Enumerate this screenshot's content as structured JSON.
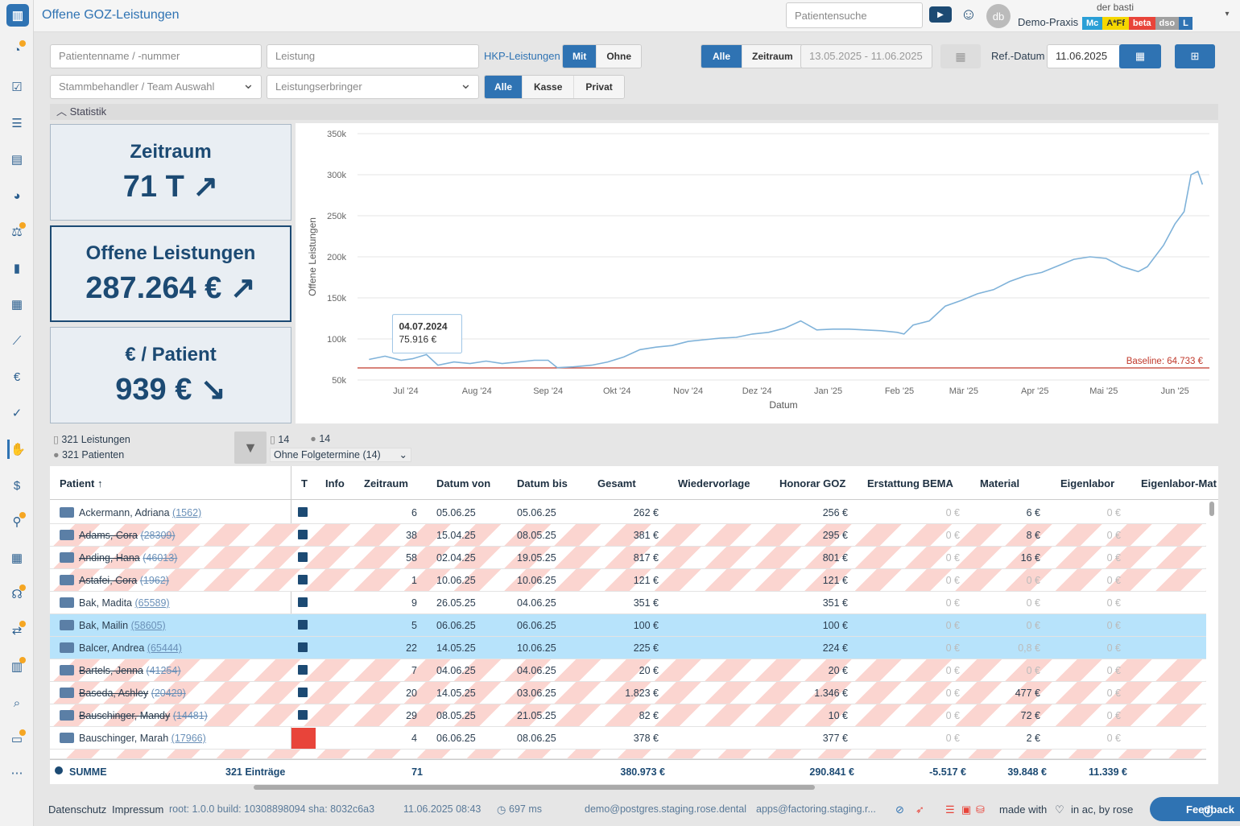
{
  "app": {
    "title": "Offene GOZ-Leistungen",
    "logo_icon": "bar-chart-icon"
  },
  "header": {
    "search_placeholder": "Patientensuche",
    "user": "der basti",
    "practice": "Demo-Praxis",
    "badges": [
      {
        "label": "Mc",
        "color": "#2a9fd6"
      },
      {
        "label": "A*Ff",
        "color": "#f5d700",
        "text_color": "#333"
      },
      {
        "label": "beta",
        "color": "#e8443a"
      },
      {
        "label": "dso",
        "color": "#a0a0a0"
      },
      {
        "label": "L",
        "color": "#2f73b3"
      }
    ],
    "avatar_initials": "db"
  },
  "filters": {
    "patient_placeholder": "Patientenname / -nummer",
    "leistung_placeholder": "Leistung",
    "hkp_label": "HKP-Leistungen",
    "hkp_options": [
      "Mit",
      "Ohne"
    ],
    "hkp_selected": "Mit",
    "period_options": [
      "Alle",
      "Zeitraum"
    ],
    "period_selected": "Alle",
    "date_range": "13.05.2025 - 11.06.2025",
    "ref_label": "Ref.-Datum",
    "ref_date": "11.06.2025",
    "behandler_placeholder": "Stammbehandler / Team Auswahl",
    "erbringer_placeholder": "Leistungserbringer",
    "kasse_options": [
      "Alle",
      "Kasse",
      "Privat"
    ],
    "kasse_selected": "Alle"
  },
  "statistik": {
    "label": "Statistik"
  },
  "kpis": [
    {
      "label": "Zeitraum",
      "value": "71 T",
      "trend": "↗"
    },
    {
      "label": "Offene Leistungen",
      "value": "287.264 €",
      "trend": "↗"
    },
    {
      "label": "€ / Patient",
      "value": "939 €",
      "trend": "↘"
    }
  ],
  "chart_data": {
    "type": "line",
    "xlabel": "Datum",
    "ylabel": "Offene Leistungen",
    "ylim": [
      50000,
      350000
    ],
    "yticks": [
      "50k",
      "100k",
      "150k",
      "200k",
      "250k",
      "300k",
      "350k"
    ],
    "xticks": [
      "Jul '24",
      "Aug '24",
      "Sep '24",
      "Okt '24",
      "Nov '24",
      "Dez '24",
      "Jan '25",
      "Feb '25",
      "Mär '25",
      "Apr '25",
      "Mai '25",
      "Jun '25"
    ],
    "baseline": {
      "label": "Baseline: 64.733 €",
      "value": 64733,
      "color": "#c0392b"
    },
    "tooltip": {
      "date": "04.07.2024",
      "value": "75.916 €"
    },
    "series": [
      {
        "color": "#7fb2d9",
        "points": [
          [
            "2024-06-15",
            75000
          ],
          [
            "2024-06-22",
            79000
          ],
          [
            "2024-06-29",
            74000
          ],
          [
            "2024-07-04",
            75916
          ],
          [
            "2024-07-10",
            81000
          ],
          [
            "2024-07-15",
            68000
          ],
          [
            "2024-07-22",
            72000
          ],
          [
            "2024-07-29",
            70000
          ],
          [
            "2024-08-05",
            73000
          ],
          [
            "2024-08-12",
            70000
          ],
          [
            "2024-08-19",
            72000
          ],
          [
            "2024-08-26",
            74000
          ],
          [
            "2024-09-01",
            74000
          ],
          [
            "2024-09-05",
            65000
          ],
          [
            "2024-09-12",
            66000
          ],
          [
            "2024-09-20",
            68000
          ],
          [
            "2024-09-27",
            72000
          ],
          [
            "2024-10-04",
            78000
          ],
          [
            "2024-10-11",
            87000
          ],
          [
            "2024-10-18",
            90000
          ],
          [
            "2024-10-25",
            92000
          ],
          [
            "2024-11-01",
            97000
          ],
          [
            "2024-11-08",
            99000
          ],
          [
            "2024-11-15",
            101000
          ],
          [
            "2024-11-22",
            102000
          ],
          [
            "2024-11-29",
            106000
          ],
          [
            "2024-12-06",
            108000
          ],
          [
            "2024-12-13",
            113000
          ],
          [
            "2024-12-20",
            122000
          ],
          [
            "2024-12-27",
            111000
          ],
          [
            "2025-01-03",
            112000
          ],
          [
            "2025-01-10",
            112000
          ],
          [
            "2025-01-17",
            111000
          ],
          [
            "2025-01-24",
            110000
          ],
          [
            "2025-01-31",
            108000
          ],
          [
            "2025-02-03",
            106000
          ],
          [
            "2025-02-07",
            117000
          ],
          [
            "2025-02-14",
            122000
          ],
          [
            "2025-02-21",
            140000
          ],
          [
            "2025-02-28",
            147000
          ],
          [
            "2025-03-07",
            155000
          ],
          [
            "2025-03-14",
            160000
          ],
          [
            "2025-03-21",
            170000
          ],
          [
            "2025-03-28",
            177000
          ],
          [
            "2025-04-04",
            181000
          ],
          [
            "2025-04-11",
            189000
          ],
          [
            "2025-04-18",
            197000
          ],
          [
            "2025-04-25",
            200000
          ],
          [
            "2025-05-02",
            198000
          ],
          [
            "2025-05-09",
            188000
          ],
          [
            "2025-05-16",
            182000
          ],
          [
            "2025-05-20",
            188000
          ],
          [
            "2025-05-27",
            214000
          ],
          [
            "2025-06-01",
            240000
          ],
          [
            "2025-06-05",
            255000
          ],
          [
            "2025-06-08",
            300000
          ],
          [
            "2025-06-11",
            304000
          ],
          [
            "2025-06-13",
            288000
          ]
        ]
      }
    ]
  },
  "stats": {
    "leistungen": "321 Leistungen",
    "patienten": "321 Patienten",
    "filter_docs": "14",
    "filter_patients": "14",
    "followup": "Ohne Folgetermine (14)"
  },
  "table": {
    "columns": [
      "Patient ↑",
      "T",
      "Info",
      "Zeitraum",
      "Datum von",
      "Datum bis",
      "Gesamt",
      "Wiedervorlage",
      "Honorar GOZ",
      "Erstattung BEMA",
      "Material",
      "Eigenlabor",
      "Eigenlabor-Mat"
    ],
    "rows": [
      {
        "name": "Ackermann, Adriana",
        "num": "(1562)",
        "zeit": "6",
        "von": "05.06.25",
        "bis": "05.06.25",
        "gesamt": "262 €",
        "honorar": "256 €",
        "bema": "0 €",
        "material": "6 €",
        "eigen": "0 €",
        "state": "normal"
      },
      {
        "name": "Adams, Cora",
        "num": "(28309)",
        "zeit": "38",
        "von": "15.04.25",
        "bis": "08.05.25",
        "gesamt": "381 €",
        "honorar": "295 €",
        "bema": "0 €",
        "material": "8 €",
        "eigen": "0 €",
        "state": "striped"
      },
      {
        "name": "Anding, Hana",
        "num": "(46013)",
        "zeit": "58",
        "von": "02.04.25",
        "bis": "19.05.25",
        "gesamt": "817 €",
        "honorar": "801 €",
        "bema": "0 €",
        "material": "16 €",
        "eigen": "0 €",
        "state": "striped"
      },
      {
        "name": "Astafei, Cora",
        "num": "(1962)",
        "zeit": "1",
        "von": "10.06.25",
        "bis": "10.06.25",
        "gesamt": "121 €",
        "honorar": "121 €",
        "bema": "0 €",
        "material": "0 €",
        "eigen": "0 €",
        "state": "striped"
      },
      {
        "name": "Bak, Madita",
        "num": "(65589)",
        "zeit": "9",
        "von": "26.05.25",
        "bis": "04.06.25",
        "gesamt": "351 €",
        "honorar": "351 €",
        "bema": "0 €",
        "material": "0 €",
        "eigen": "0 €",
        "state": "normal"
      },
      {
        "name": "Bak, Mailin",
        "num": "(58605)",
        "zeit": "5",
        "von": "06.06.25",
        "bis": "06.06.25",
        "gesamt": "100 €",
        "honorar": "100 €",
        "bema": "0 €",
        "material": "0 €",
        "eigen": "0 €",
        "state": "selected"
      },
      {
        "name": "Balcer, Andrea",
        "num": "(65444)",
        "zeit": "22",
        "von": "14.05.25",
        "bis": "10.06.25",
        "gesamt": "225 €",
        "honorar": "224 €",
        "bema": "0 €",
        "material": "0,8 €",
        "eigen": "0 €",
        "state": "selected"
      },
      {
        "name": "Bartels, Jenna",
        "num": "(41254)",
        "zeit": "7",
        "von": "04.06.25",
        "bis": "04.06.25",
        "gesamt": "20 €",
        "honorar": "20 €",
        "bema": "0 €",
        "material": "0 €",
        "eigen": "0 €",
        "state": "striped"
      },
      {
        "name": "Baseda, Ashley",
        "num": "(20429)",
        "zeit": "20",
        "von": "14.05.25",
        "bis": "03.06.25",
        "gesamt": "1.823 €",
        "honorar": "1.346 €",
        "bema": "0 €",
        "material": "477 €",
        "eigen": "0 €",
        "state": "striped"
      },
      {
        "name": "Bauschinger, Mandy",
        "num": "(14481)",
        "zeit": "29",
        "von": "08.05.25",
        "bis": "21.05.25",
        "gesamt": "82 €",
        "honorar": "10 €",
        "bema": "0 €",
        "material": "72 €",
        "eigen": "0 €",
        "state": "striped"
      },
      {
        "name": "Bauschinger, Marah",
        "num": "(17966)",
        "zeit": "4",
        "von": "06.06.25",
        "bis": "08.06.25",
        "gesamt": "378 €",
        "honorar": "377 €",
        "bema": "0 €",
        "material": "2 €",
        "eigen": "0 €",
        "state": "normal",
        "red_t": true
      }
    ],
    "footer": {
      "label": "SUMME",
      "entries": "321 Einträge",
      "zeit": "71",
      "gesamt": "380.973 €",
      "honorar": "290.841 €",
      "bema": "-5.517 €",
      "material": "39.848 €",
      "eigen": "11.339 €"
    }
  },
  "footer": {
    "datenschutz": "Datenschutz",
    "impressum": "Impressum",
    "build": "root: 1.0.0 build: 10308898094 sha: 8032c6a3",
    "timestamp": "11.06.2025 08:43",
    "timing": "697 ms",
    "db": "demo@postgres.staging.rose.dental",
    "apps": "apps@factoring.staging.r...",
    "made_with": "made with",
    "in_ac": "in ac, by rose",
    "feedback": "Feedback"
  }
}
